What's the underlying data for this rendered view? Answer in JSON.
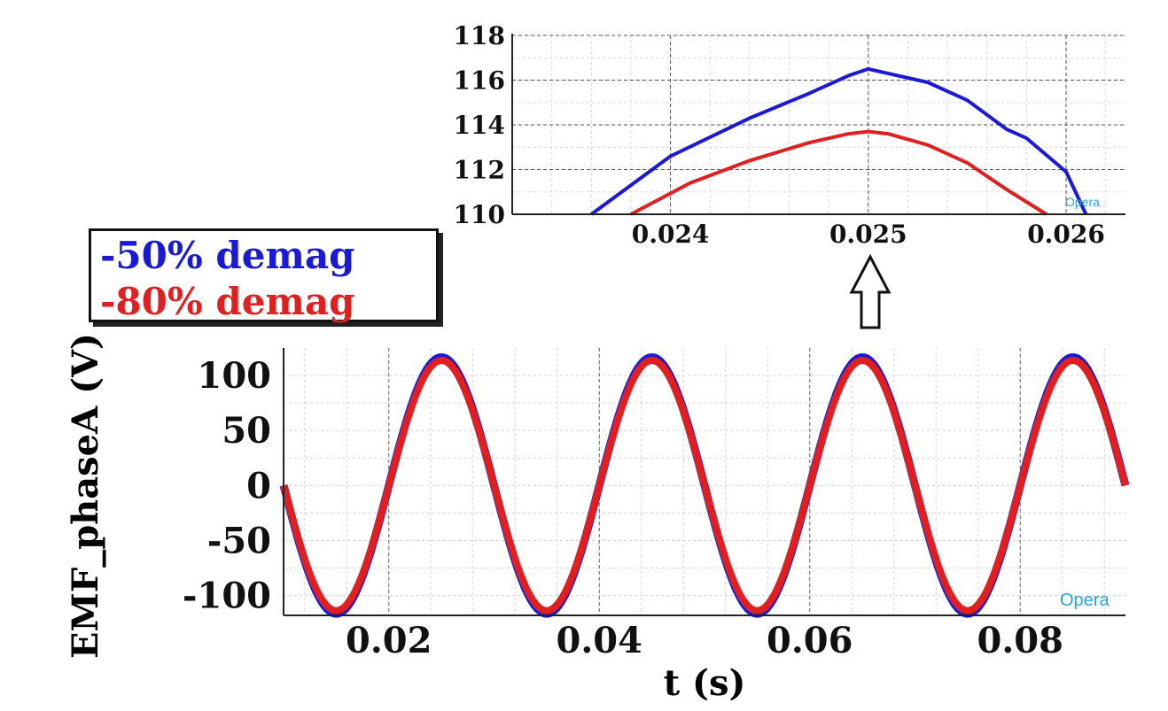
{
  "legend": {
    "series_1": "-50% demag",
    "series_2": "-80% demag"
  },
  "colors": {
    "series_1": "#1a1ad6",
    "series_2": "#e02020"
  },
  "watermark": "Opera",
  "chart_data": [
    {
      "type": "line",
      "title": "",
      "xlabel": "",
      "ylabel": "",
      "xlim": [
        0.0232,
        0.0263
      ],
      "ylim": [
        110,
        118
      ],
      "xticks": [
        "0.024",
        "0.025",
        "0.026"
      ],
      "yticks": [
        "110",
        "112",
        "114",
        "116",
        "118"
      ],
      "grid": true,
      "series": [
        {
          "name": "-50% demag",
          "x": [
            0.0236,
            0.024,
            0.0244,
            0.0247,
            0.0249,
            0.025,
            0.0251,
            0.0253,
            0.0255,
            0.0257,
            0.0258,
            0.026,
            0.0261
          ],
          "y": [
            110.0,
            112.6,
            114.3,
            115.4,
            116.2,
            116.5,
            116.3,
            115.9,
            115.1,
            113.8,
            113.4,
            111.9,
            110.0
          ]
        },
        {
          "name": "-80% demag",
          "x": [
            0.0238,
            0.0241,
            0.0244,
            0.0247,
            0.0249,
            0.025,
            0.0251,
            0.0253,
            0.0255,
            0.0257,
            0.0259
          ],
          "y": [
            110.0,
            111.4,
            112.4,
            113.2,
            113.6,
            113.7,
            113.6,
            113.1,
            112.3,
            111.1,
            110.0
          ]
        }
      ]
    },
    {
      "type": "line",
      "title": "",
      "xlabel": "t (s)",
      "ylabel": "EMF_phaseA (V)",
      "xlim": [
        0.01,
        0.09
      ],
      "ylim": [
        -118,
        125
      ],
      "xticks": [
        "0.02",
        "0.04",
        "0.06",
        "0.08"
      ],
      "yticks": [
        "100",
        "50",
        "0",
        "-50",
        "-100"
      ],
      "grid": true,
      "series": [
        {
          "name": "-50% demag",
          "frequency_hz": 50,
          "amplitude": 116.5,
          "phase_ref_peak_time": 0.025
        },
        {
          "name": "-80% demag",
          "frequency_hz": 50,
          "amplitude": 113.7,
          "phase_ref_peak_time": 0.025
        }
      ]
    }
  ]
}
